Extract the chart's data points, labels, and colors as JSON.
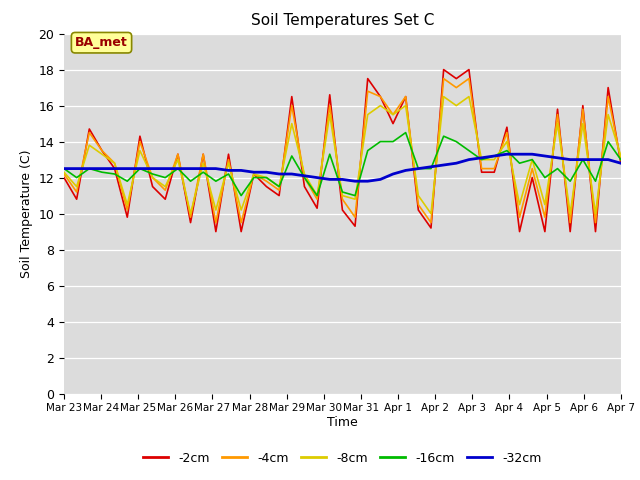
{
  "title": "Soil Temperatures Set C",
  "xlabel": "Time",
  "ylabel": "Soil Temperature (C)",
  "annotation": "BA_met",
  "ylim": [
    0,
    20
  ],
  "yticks": [
    0,
    2,
    4,
    6,
    8,
    10,
    12,
    14,
    16,
    18,
    20
  ],
  "background_color": "#dcdcdc",
  "series_order": [
    "-2cm",
    "-4cm",
    "-8cm",
    "-16cm",
    "-32cm"
  ],
  "series": {
    "-2cm": {
      "color": "#dd0000",
      "lw": 1.2
    },
    "-4cm": {
      "color": "#ff9900",
      "lw": 1.2
    },
    "-8cm": {
      "color": "#ddcc00",
      "lw": 1.2
    },
    "-16cm": {
      "color": "#00bb00",
      "lw": 1.2
    },
    "-32cm": {
      "color": "#0000cc",
      "lw": 2.0
    }
  },
  "x_labels": [
    "Mar 23",
    "Mar 24",
    "Mar 25",
    "Mar 26",
    "Mar 27",
    "Mar 28",
    "Mar 29",
    "Mar 30",
    "Mar 31",
    "Apr 1",
    "Apr 2",
    "Apr 3",
    "Apr 4",
    "Apr 5",
    "Apr 6",
    "Apr 7"
  ],
  "n_ticks": 16,
  "data": {
    "-2cm": [
      12.0,
      10.8,
      14.7,
      13.5,
      12.5,
      9.8,
      14.3,
      11.5,
      10.8,
      13.3,
      9.5,
      13.3,
      9.0,
      13.3,
      9.0,
      12.2,
      11.5,
      11.0,
      16.5,
      11.5,
      10.3,
      16.6,
      10.2,
      9.3,
      17.5,
      16.5,
      15.0,
      16.5,
      10.2,
      9.2,
      18.0,
      17.5,
      18.0,
      12.3,
      12.3,
      14.8,
      9.0,
      12.0,
      9.0,
      15.8,
      9.0,
      16.0,
      9.0,
      17.0,
      12.8
    ],
    "-4cm": [
      12.2,
      11.2,
      14.5,
      13.5,
      12.8,
      10.2,
      14.0,
      12.0,
      11.3,
      13.3,
      9.8,
      13.3,
      9.5,
      13.0,
      9.5,
      12.2,
      11.8,
      11.3,
      16.0,
      12.0,
      10.8,
      16.0,
      10.8,
      9.8,
      16.8,
      16.5,
      15.5,
      16.5,
      10.5,
      9.5,
      17.5,
      17.0,
      17.5,
      12.5,
      12.5,
      14.5,
      9.8,
      12.5,
      9.8,
      15.5,
      9.5,
      15.8,
      9.5,
      16.5,
      13.0
    ],
    "-8cm": [
      12.3,
      11.5,
      13.8,
      13.3,
      12.8,
      10.5,
      13.5,
      12.0,
      11.5,
      13.0,
      10.0,
      12.8,
      10.2,
      12.8,
      10.2,
      12.2,
      12.0,
      11.5,
      15.0,
      12.2,
      11.0,
      15.5,
      11.0,
      10.8,
      15.5,
      16.0,
      15.5,
      16.0,
      11.0,
      10.0,
      16.5,
      16.0,
      16.5,
      13.0,
      13.0,
      14.0,
      10.5,
      13.0,
      10.5,
      15.0,
      10.0,
      15.0,
      10.0,
      15.5,
      13.2
    ],
    "-16cm": [
      12.5,
      12.0,
      12.5,
      12.3,
      12.2,
      11.8,
      12.5,
      12.2,
      12.0,
      12.5,
      11.8,
      12.3,
      11.8,
      12.2,
      11.0,
      12.0,
      12.0,
      11.5,
      13.2,
      12.0,
      11.0,
      13.3,
      11.2,
      11.0,
      13.5,
      14.0,
      14.0,
      14.5,
      12.5,
      12.5,
      14.3,
      14.0,
      13.5,
      13.0,
      13.2,
      13.5,
      12.8,
      13.0,
      12.0,
      12.5,
      11.8,
      13.0,
      11.8,
      14.0,
      13.0
    ],
    "-32cm": [
      12.5,
      12.5,
      12.5,
      12.5,
      12.5,
      12.5,
      12.5,
      12.5,
      12.5,
      12.5,
      12.5,
      12.5,
      12.5,
      12.4,
      12.4,
      12.3,
      12.3,
      12.2,
      12.2,
      12.1,
      12.0,
      11.9,
      11.9,
      11.8,
      11.8,
      11.9,
      12.2,
      12.4,
      12.5,
      12.6,
      12.7,
      12.8,
      13.0,
      13.1,
      13.2,
      13.3,
      13.3,
      13.3,
      13.2,
      13.1,
      13.0,
      13.0,
      13.0,
      13.0,
      12.8
    ]
  }
}
